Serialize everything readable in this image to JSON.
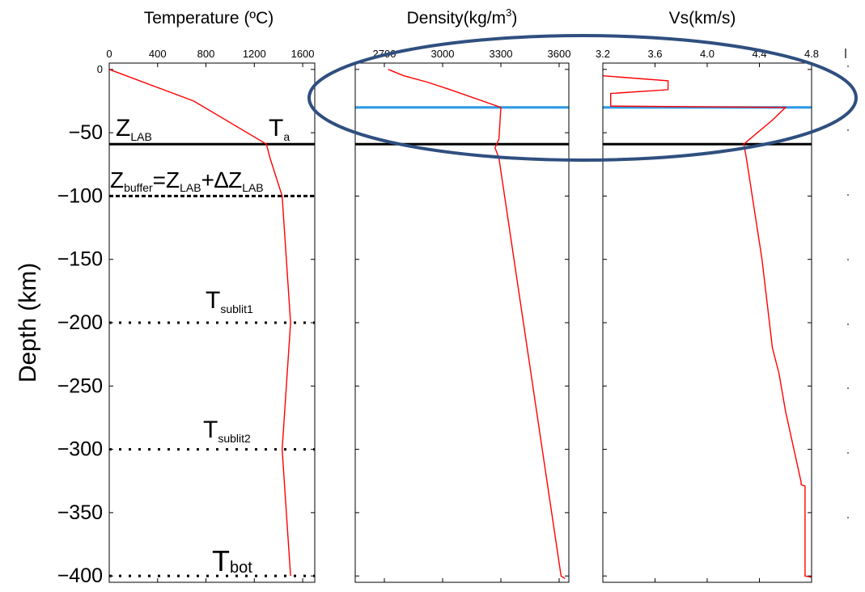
{
  "chart_data": [
    {
      "type": "line",
      "title": "Temperature (ºC)",
      "ylabel": "Depth (km)",
      "xlim": [
        0,
        1700
      ],
      "ylim": [
        -405,
        5
      ],
      "x_ticks": [
        "0",
        "400",
        "800",
        "1200",
        "1600"
      ],
      "x_tick_values": [
        0,
        400,
        800,
        1200,
        1600
      ],
      "y_ticks": [
        "0",
        "−50",
        "−100",
        "−150",
        "−200",
        "−250",
        "−300",
        "−350",
        "−400"
      ],
      "y_tick_values": [
        0,
        -50,
        -100,
        -150,
        -200,
        -250,
        -300,
        -350,
        -400
      ],
      "series": [
        {
          "color": "#ff0000",
          "x": [
            0,
            700,
            1300,
            1330,
            1430,
            1500,
            1430,
            1500
          ],
          "y": [
            0,
            -25,
            -59,
            -70,
            -100,
            -200,
            -300,
            -400
          ]
        }
      ],
      "hlines": [
        {
          "y": -59,
          "style": "solid",
          "color": "#000000"
        },
        {
          "y": -100,
          "style": "dashed",
          "color": "#000000"
        },
        {
          "y": -200,
          "style": "dotted",
          "color": "#000000"
        },
        {
          "y": -300,
          "style": "dotted",
          "color": "#000000"
        },
        {
          "y": -400,
          "style": "dotted",
          "color": "#000000"
        }
      ],
      "annotations": {
        "z_lab": {
          "main": "Z",
          "sub": "LAB"
        },
        "t_a": {
          "main": "T",
          "sub": "a"
        },
        "z_buffer": {
          "z1": "Z",
          "sub1": "buffer",
          "eq": "=",
          "z2": "Z",
          "sub2": "LAB",
          "plus": "+",
          "delta": "∆Z",
          "sub3": "LAB"
        },
        "t_sublit1": {
          "main": "T",
          "sub": "sublit1"
        },
        "t_sublit2": {
          "main": "T",
          "sub": "sublit2"
        },
        "t_bot": {
          "main": "T",
          "sub": "bot"
        }
      }
    },
    {
      "type": "line",
      "title_main": "Density(kg/m",
      "title_sup": "3",
      "title_end": ")",
      "xlim": [
        2550,
        3650
      ],
      "ylim": [
        -405,
        5
      ],
      "x_ticks": [
        "2700",
        "3000",
        "3300",
        "3600"
      ],
      "x_tick_values": [
        2700,
        3000,
        3300,
        3600
      ],
      "series": [
        {
          "color": "#ff0000",
          "x": [
            2720,
            2800,
            2800,
            2920,
            2920,
            3040,
            3040,
            3300,
            3290,
            3270,
            3290,
            3610,
            3630
          ],
          "y": [
            0,
            -5,
            -5,
            -10,
            -10,
            -16,
            -16,
            -30,
            -55,
            -62,
            -70,
            -400,
            -402
          ]
        }
      ],
      "hlines": [
        {
          "y": -30,
          "style": "solid",
          "color": "#2e9be4"
        },
        {
          "y": -59,
          "style": "solid",
          "color": "#000000"
        }
      ]
    },
    {
      "type": "line",
      "title": "Vs(km/s)",
      "xlim": [
        3.2,
        4.8
      ],
      "ylim": [
        -405,
        5
      ],
      "x_ticks": [
        "3.2",
        "3.6",
        "4.0",
        "4.4",
        "4.8"
      ],
      "x_tick_values": [
        3.2,
        3.6,
        4.0,
        4.4,
        4.8
      ],
      "series": [
        {
          "color": "#ff0000",
          "x": [
            3.2,
            3.7,
            3.7,
            3.26,
            3.26,
            4.6,
            4.5,
            4.28,
            4.3,
            4.42,
            4.5,
            4.55,
            4.6,
            4.72,
            4.72,
            4.75,
            4.75,
            4.8
          ],
          "y": [
            -5,
            -9,
            -16,
            -19,
            -29,
            -30,
            -40,
            -59,
            -70,
            -150,
            -220,
            -240,
            -270,
            -326,
            -328,
            -329,
            -400,
            -401
          ]
        }
      ],
      "hlines": [
        {
          "y": -30,
          "style": "solid",
          "color": "#2e9be4"
        },
        {
          "y": -59,
          "style": "solid",
          "color": "#000000"
        }
      ]
    }
  ],
  "highlight": {
    "shape": "ellipse",
    "color": "#2f4f7f"
  }
}
